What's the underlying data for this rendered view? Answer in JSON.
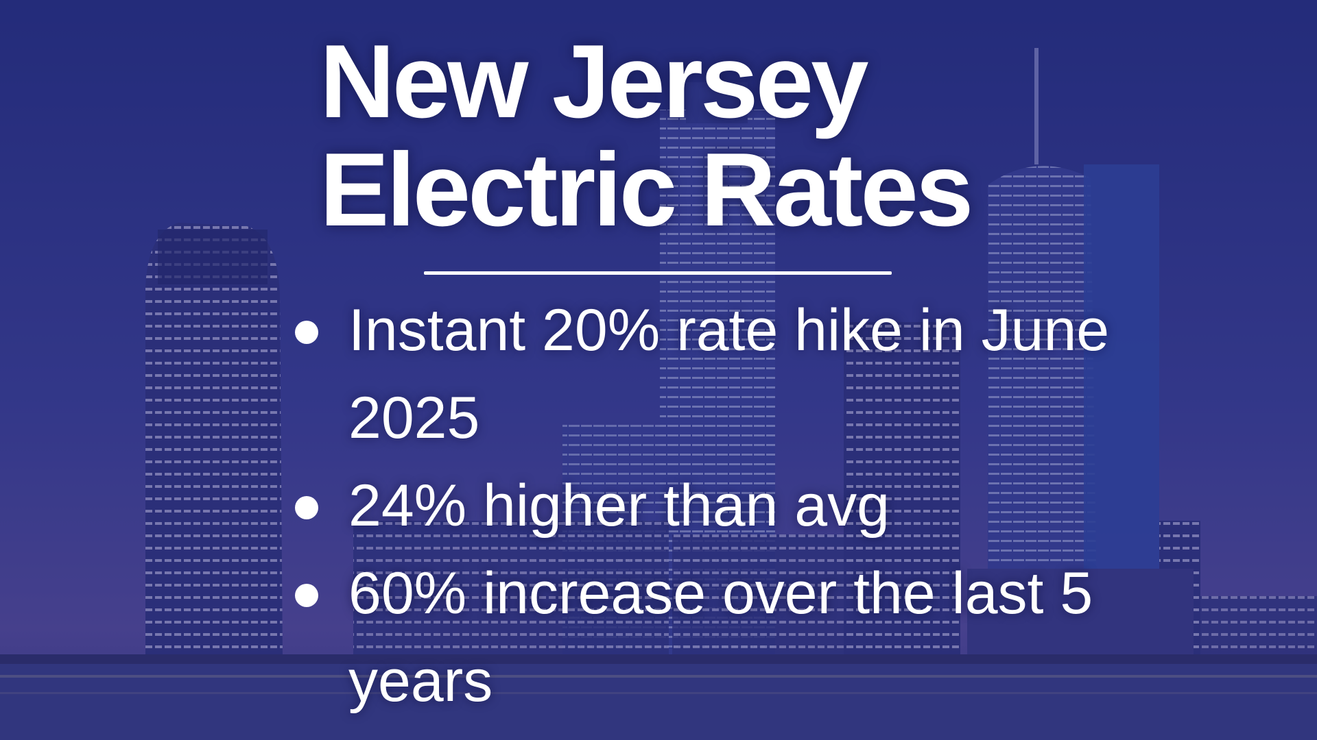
{
  "title": {
    "lines": [
      "New Jersey",
      "Electric Rates"
    ]
  },
  "bullets": [
    "Instant 20% rate hike in June 2025",
    "24% higher than avg",
    "60% increase over the last 5 years"
  ]
}
